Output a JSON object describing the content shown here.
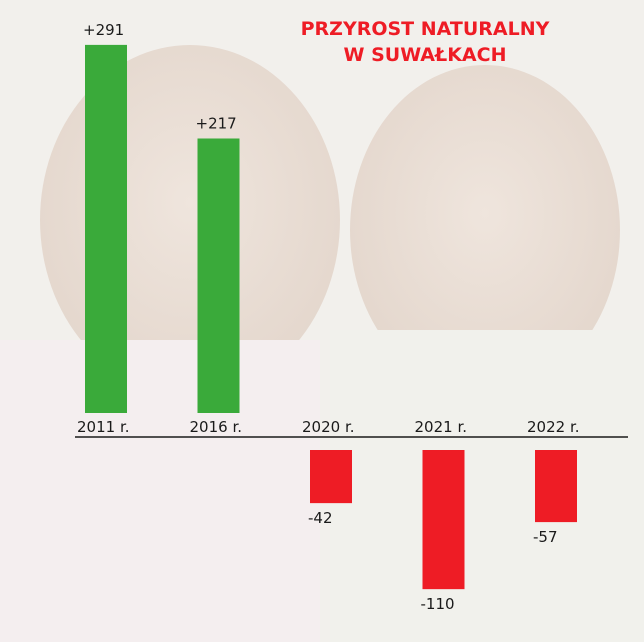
{
  "chart_data": {
    "type": "bar",
    "title": "PRZYROST NATURALNY W SUWAŁKACH",
    "categories": [
      "2011 r.",
      "2016 r.",
      "2020 r.",
      "2021 r.",
      "2022 r."
    ],
    "values": [
      291,
      217,
      -42,
      -110,
      -57
    ],
    "value_labels": [
      "+291",
      "+217",
      "-42",
      "-110",
      "-57"
    ],
    "positive_color": "#3aaa3a",
    "negative_color": "#ee1c25"
  }
}
